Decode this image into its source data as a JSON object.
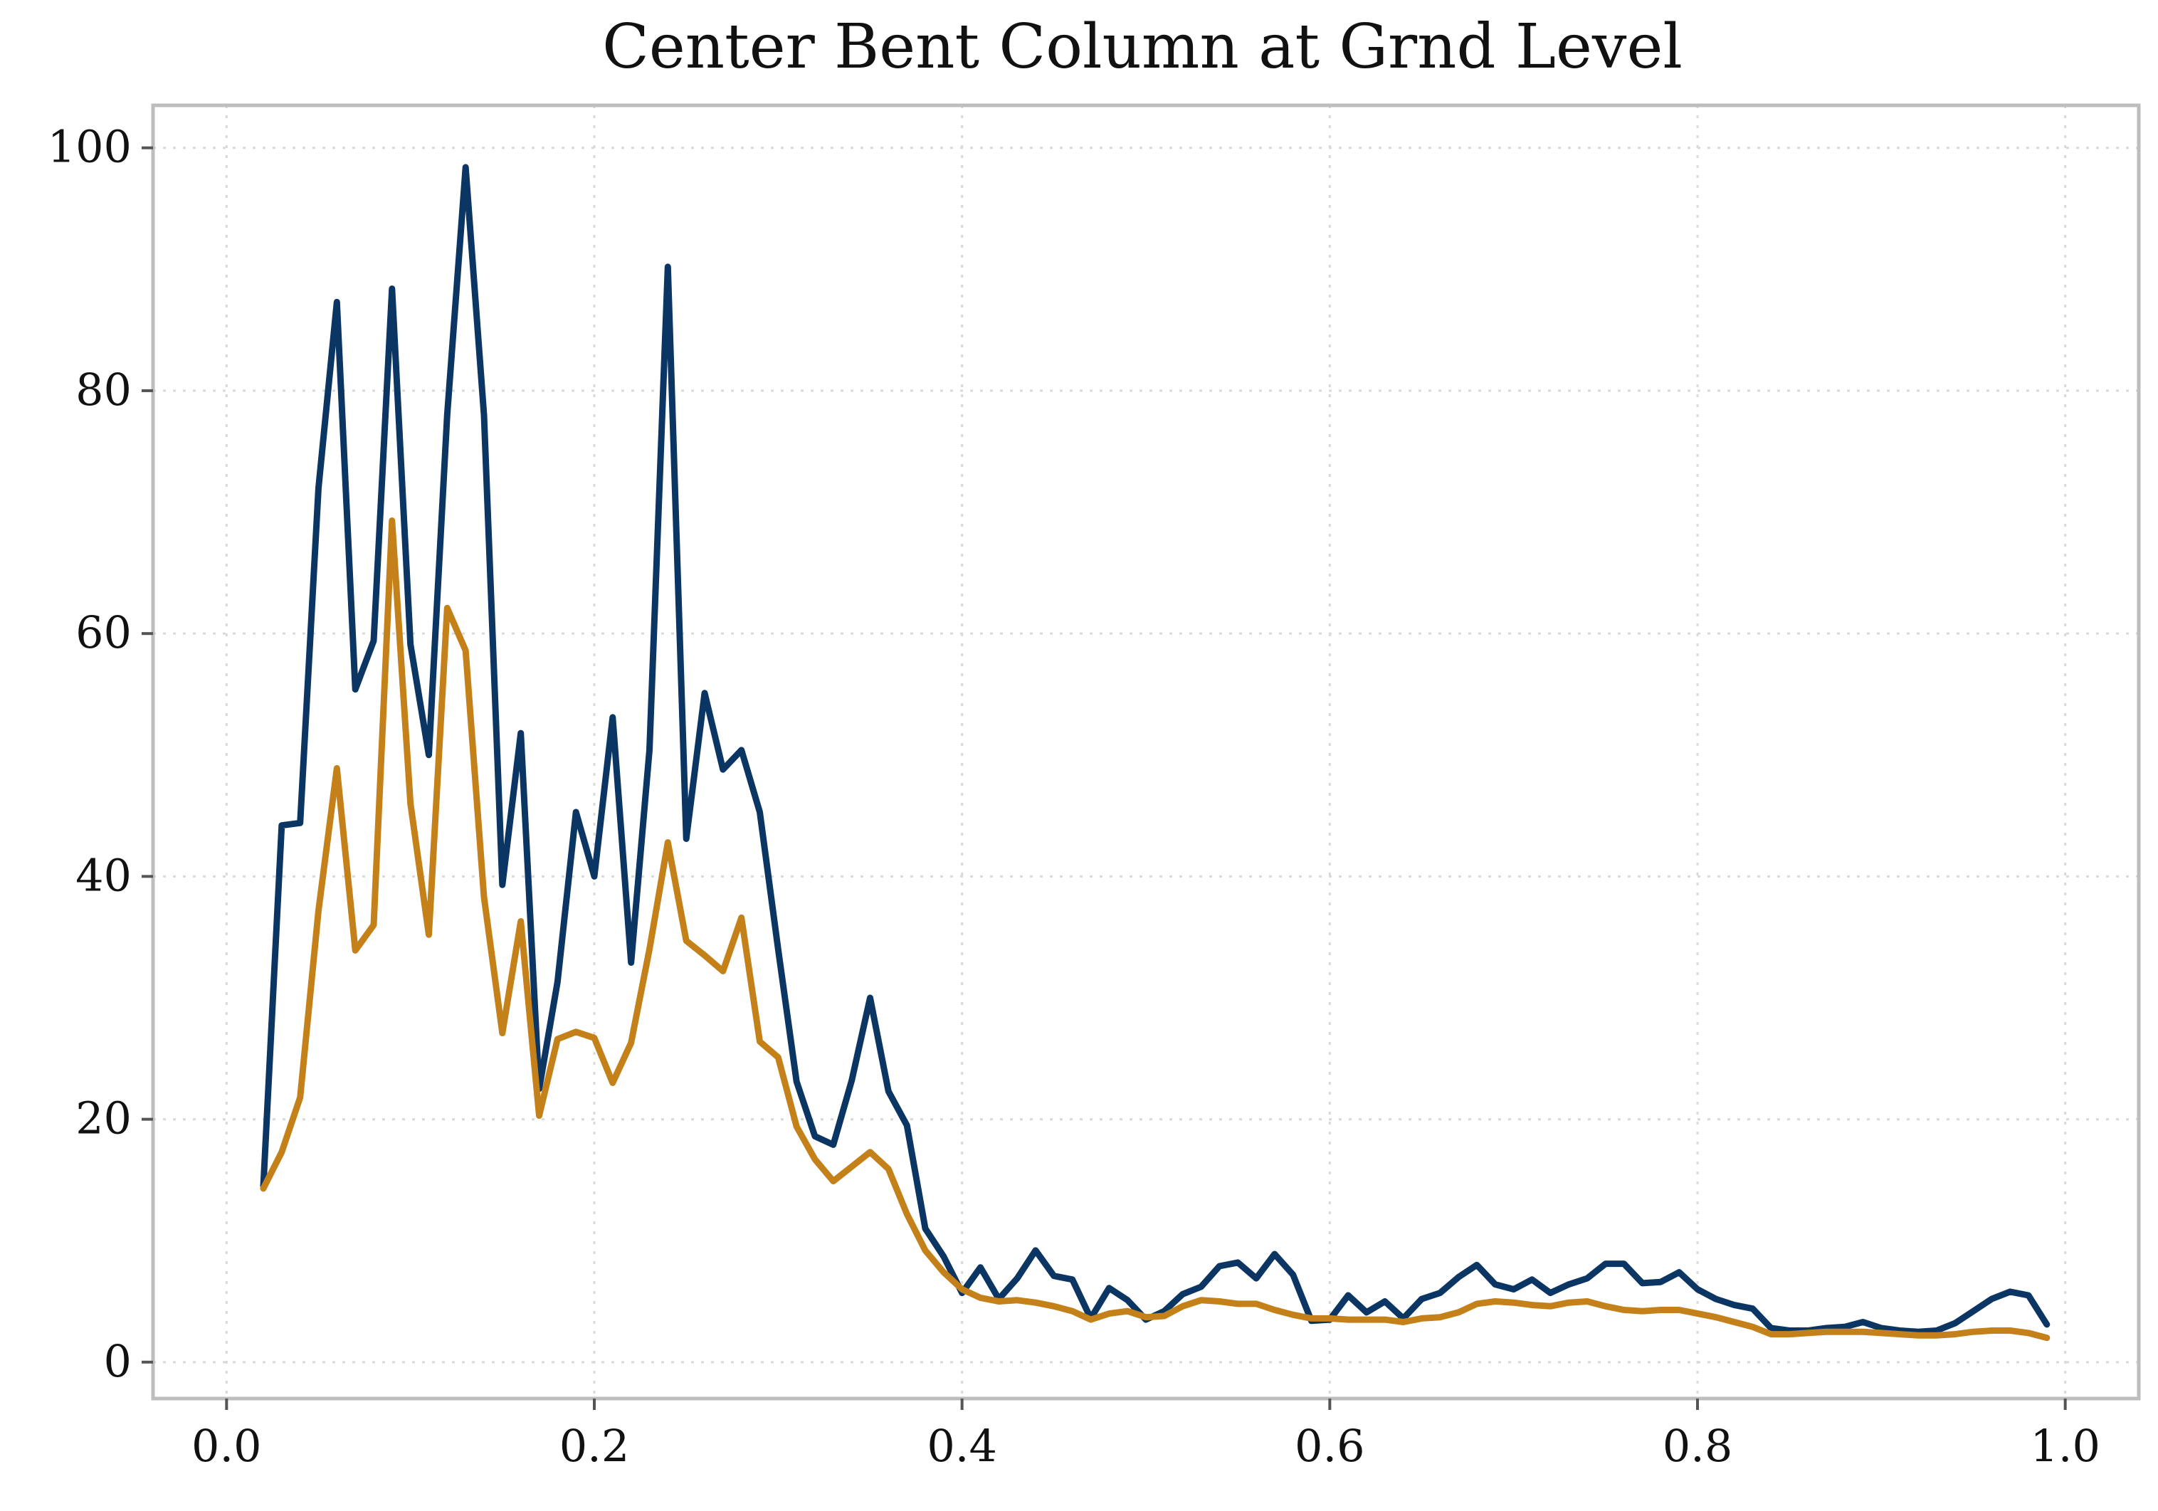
{
  "chart_data": {
    "type": "line",
    "title": "Center Bent Column at Grnd Level",
    "xlabel": "",
    "ylabel": "",
    "xlim": [
      -0.04,
      1.04
    ],
    "ylim": [
      -3,
      103.5
    ],
    "x_ticks": [
      0.0,
      0.2,
      0.4,
      0.6,
      0.8,
      1.0
    ],
    "x_tick_labels": [
      "0.0",
      "0.2",
      "0.4",
      "0.6",
      "0.8",
      "1.0"
    ],
    "y_ticks": [
      0,
      20,
      40,
      60,
      80,
      100
    ],
    "y_tick_labels": [
      "0",
      "20",
      "40",
      "60",
      "80",
      "100"
    ],
    "grid": true,
    "legend": "none",
    "x": [
      0.02,
      0.03,
      0.04,
      0.05,
      0.06,
      0.07,
      0.08,
      0.09,
      0.1,
      0.11,
      0.12,
      0.13,
      0.14,
      0.15,
      0.16,
      0.17,
      0.18,
      0.19,
      0.2,
      0.21,
      0.22,
      0.23,
      0.24,
      0.25,
      0.26,
      0.27,
      0.28,
      0.29,
      0.3,
      0.31,
      0.32,
      0.33,
      0.34,
      0.35,
      0.36,
      0.37,
      0.38,
      0.39,
      0.4,
      0.41,
      0.42,
      0.43,
      0.44,
      0.45,
      0.46,
      0.47,
      0.48,
      0.49,
      0.5,
      0.51,
      0.52,
      0.53,
      0.54,
      0.55,
      0.56,
      0.57,
      0.58,
      0.59,
      0.6,
      0.61,
      0.62,
      0.63,
      0.64,
      0.65,
      0.66,
      0.67,
      0.68,
      0.69,
      0.7,
      0.71,
      0.72,
      0.73,
      0.74,
      0.75,
      0.76,
      0.77,
      0.78,
      0.79,
      0.8,
      0.81,
      0.82,
      0.83,
      0.84,
      0.85,
      0.86,
      0.87,
      0.88,
      0.89,
      0.9,
      0.91,
      0.92,
      0.93,
      0.94,
      0.95,
      0.96,
      0.97,
      0.98,
      0.99
    ],
    "series": [
      {
        "color": "#0b3563",
        "values": [
          14.5,
          44.2,
          44.4,
          72.0,
          87.3,
          55.4,
          59.4,
          88.4,
          59.1,
          50.0,
          78.0,
          98.4,
          78.0,
          39.3,
          51.8,
          22.5,
          31.3,
          45.3,
          40.0,
          53.1,
          32.9,
          50.4,
          90.2,
          43.1,
          55.1,
          48.8,
          50.4,
          45.3,
          34.0,
          23.1,
          18.6,
          17.9,
          23.2,
          30.0,
          22.3,
          19.5,
          11.0,
          8.7,
          5.7,
          7.8,
          5.2,
          6.9,
          9.2,
          7.1,
          6.8,
          3.6,
          6.1,
          5.1,
          3.5,
          4.2,
          5.6,
          6.2,
          7.9,
          8.2,
          6.9,
          8.9,
          7.2,
          3.4,
          3.5,
          5.5,
          4.1,
          5.0,
          3.6,
          5.2,
          5.7,
          7.0,
          8.0,
          6.4,
          6.0,
          6.8,
          5.7,
          6.4,
          6.9,
          8.1,
          8.1,
          6.5,
          6.6,
          7.4,
          6.0,
          5.2,
          4.7,
          4.4,
          2.8,
          2.6,
          2.6,
          2.8,
          2.9,
          3.3,
          2.8,
          2.6,
          2.5,
          2.6,
          3.2,
          4.2,
          5.2,
          5.8,
          5.5,
          3.1
        ]
      },
      {
        "color": "#c4811a",
        "values": [
          14.3,
          17.3,
          21.8,
          37.2,
          48.9,
          33.9,
          36.0,
          69.3,
          46.0,
          35.2,
          62.1,
          58.6,
          38.3,
          27.1,
          36.3,
          20.3,
          26.6,
          27.2,
          26.7,
          23.0,
          26.3,
          34.0,
          42.8,
          34.7,
          33.5,
          32.2,
          36.6,
          26.4,
          25.1,
          19.4,
          16.7,
          14.9,
          16.1,
          17.3,
          15.9,
          12.2,
          9.2,
          7.4,
          6.0,
          5.3,
          5.0,
          5.1,
          4.9,
          4.6,
          4.2,
          3.5,
          4.0,
          4.2,
          3.7,
          3.8,
          4.6,
          5.1,
          5.0,
          4.8,
          4.8,
          4.3,
          3.9,
          3.6,
          3.6,
          3.5,
          3.5,
          3.5,
          3.3,
          3.6,
          3.7,
          4.1,
          4.8,
          5.0,
          4.9,
          4.7,
          4.6,
          4.9,
          5.0,
          4.6,
          4.3,
          4.2,
          4.3,
          4.3,
          4.0,
          3.7,
          3.3,
          2.9,
          2.3,
          2.3,
          2.4,
          2.5,
          2.5,
          2.5,
          2.4,
          2.3,
          2.2,
          2.2,
          2.3,
          2.5,
          2.6,
          2.6,
          2.4,
          2.0
        ]
      }
    ]
  },
  "colors": {
    "frame": "#bdbdbd",
    "grid": "#d9d9d9",
    "text": "#111111"
  }
}
